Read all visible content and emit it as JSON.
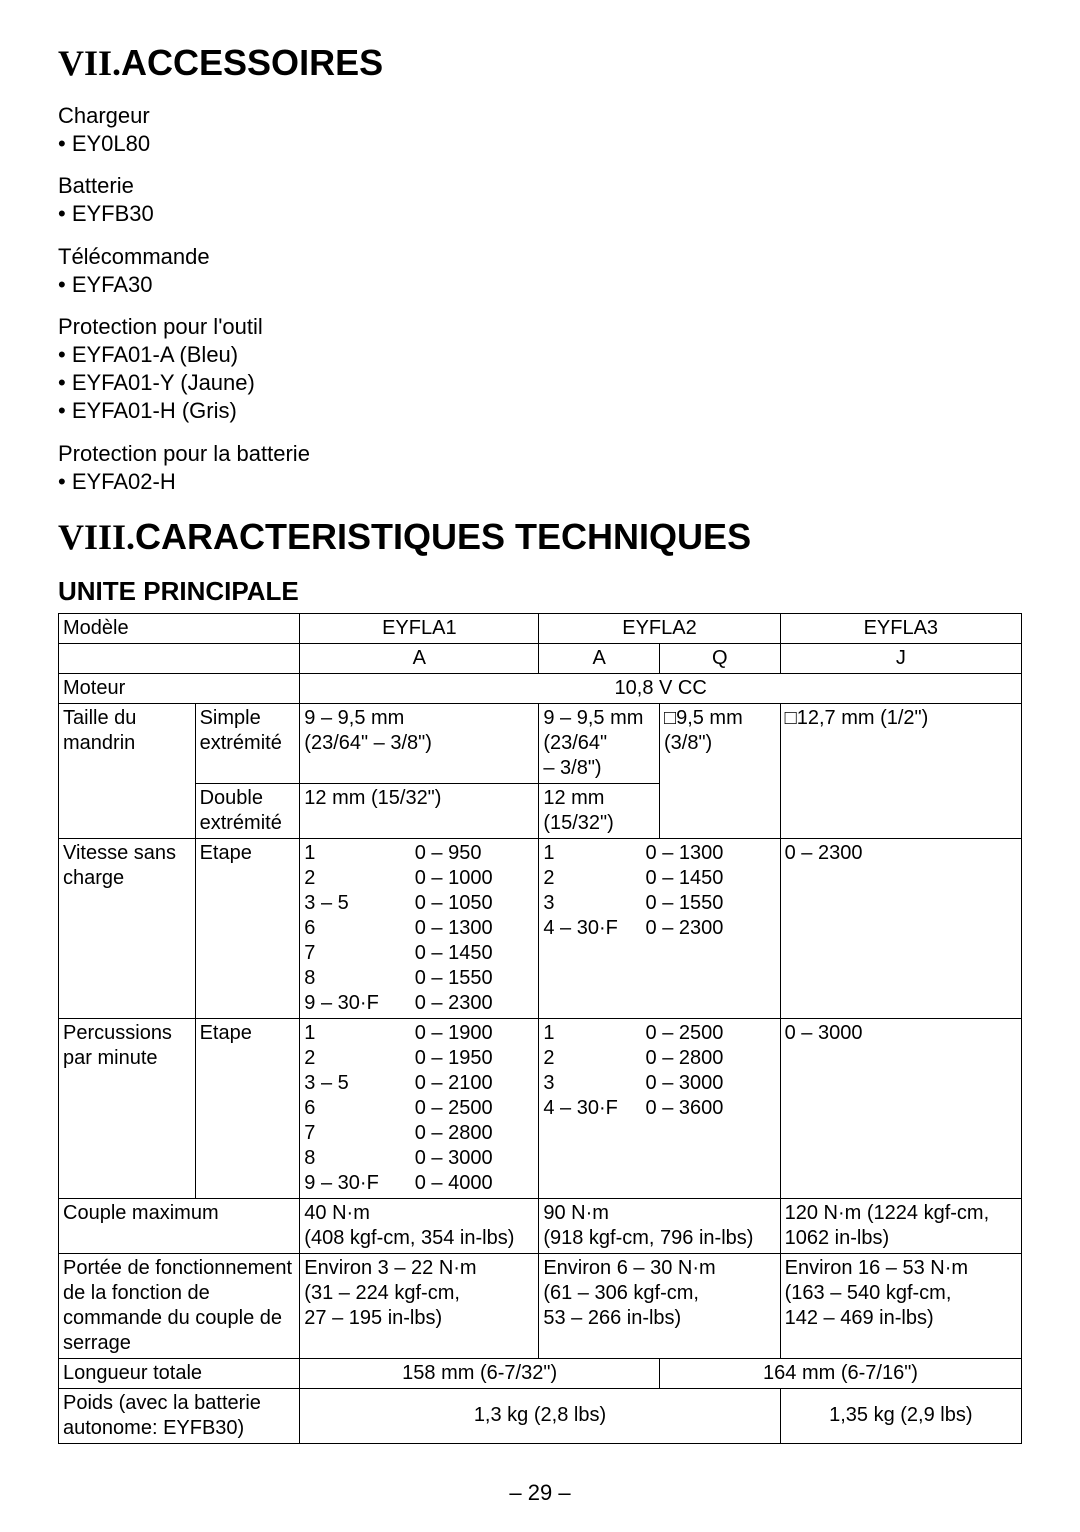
{
  "section7": {
    "roman": "VII.",
    "title": "ACCESSOIRES",
    "items": [
      {
        "label": "Chargeur",
        "bullets": [
          "EY0L80"
        ]
      },
      {
        "label": "Batterie",
        "bullets": [
          "EYFB30"
        ]
      },
      {
        "label": "Télécommande",
        "bullets": [
          "EYFA30"
        ]
      },
      {
        "label": "Protection pour l'outil",
        "bullets": [
          "EYFA01-A (Bleu)",
          "EYFA01-Y (Jaune)",
          "EYFA01-H (Gris)"
        ]
      },
      {
        "label": "Protection pour la batterie",
        "bullets": [
          "EYFA02-H"
        ]
      }
    ]
  },
  "section8": {
    "roman": "VIII.",
    "title": "CARACTERISTIQUES TECHNIQUES",
    "subtitle": "UNITE PRINCIPALE"
  },
  "table": {
    "head": {
      "modele": "Modèle",
      "m1": "EYFLA1",
      "m2": "EYFLA2",
      "m3": "EYFLA3",
      "v1": "A",
      "v2a": "A",
      "v2q": "Q",
      "v3": "J"
    },
    "moteur": {
      "label": "Moteur",
      "value": "10,8 V CC"
    },
    "mandrin": {
      "label": "Taille du mandrin",
      "simple": "Simple extrémité",
      "simple_a1": "9 – 9,5 mm\n(23/64\" – 3/8\")",
      "simple_a2": "9 – 9,5 mm\n(23/64\"\n– 3/8\")",
      "simple_q": "□9,5 mm\n(3/8\")",
      "simple_j": "□12,7 mm (1/2\")",
      "double": "Double extrémité",
      "double_a1": "12 mm (15/32\")",
      "double_a2": "12 mm\n(15/32\")"
    },
    "vitesse": {
      "label": "Vitesse sans charge",
      "etape": "Etape",
      "a1_steps": [
        "1",
        "2",
        "3 – 5",
        "6",
        "7",
        "8",
        "9 – 30·F"
      ],
      "a1_vals": [
        "0 – 950",
        "0 – 1000",
        "0 – 1050",
        "0 – 1300",
        "0 – 1450",
        "0 – 1550",
        "0 – 2300"
      ],
      "a2_steps": [
        "1",
        "2",
        "3",
        "4 – 30·F"
      ],
      "a2_vals": [
        "0 – 1300",
        "0 – 1450",
        "0 – 1550",
        "0 – 2300"
      ],
      "j": "0 – 2300"
    },
    "percussions": {
      "label": "Percussions par minute",
      "etape": "Etape",
      "a1_steps": [
        "1",
        "2",
        "3 – 5",
        "6",
        "7",
        "8",
        "9 – 30·F"
      ],
      "a1_vals": [
        "0 – 1900",
        "0 – 1950",
        "0 – 2100",
        "0 – 2500",
        "0 – 2800",
        "0 – 3000",
        "0 – 4000"
      ],
      "a2_steps": [
        "1",
        "2",
        "3",
        "4  – 30·F"
      ],
      "a2_vals": [
        "0 – 2500",
        "0 – 2800",
        "0 – 3000",
        "0 – 3600"
      ],
      "j": "0 – 3000"
    },
    "couple": {
      "label": "Couple maximum",
      "a1": "40 N·m\n(408 kgf-cm, 354 in-lbs)",
      "a2": "90 N·m\n(918 kgf-cm, 796 in-lbs)",
      "j": "120 N·m (1224 kgf-cm,\n1062 in-lbs)"
    },
    "portee": {
      "label": "Portée de fonctionnement de la fonction de commande du couple de serrage",
      "a1": "Environ 3 – 22 N·m\n(31 – 224 kgf-cm,\n27 – 195 in-lbs)",
      "a2": "Environ 6 – 30 N·m\n(61 – 306 kgf-cm,\n53 – 266 in-lbs)",
      "j": "Environ 16 – 53 N·m\n(163 – 540 kgf-cm,\n142 – 469 in-lbs)"
    },
    "longueur": {
      "label": "Longueur totale",
      "v1": "158 mm (6-7/32\")",
      "v2": "164 mm (6-7/16\")"
    },
    "poids": {
      "label": "Poids (avec la batterie autonome: EYFB30)",
      "v1": "1,3 kg (2,8 lbs)",
      "v2": "1,35 kg (2,9 lbs)"
    }
  },
  "pageNumber": "– 29 –",
  "colors": {
    "text": "#000000",
    "bg": "#ffffff",
    "border": "#000000"
  }
}
